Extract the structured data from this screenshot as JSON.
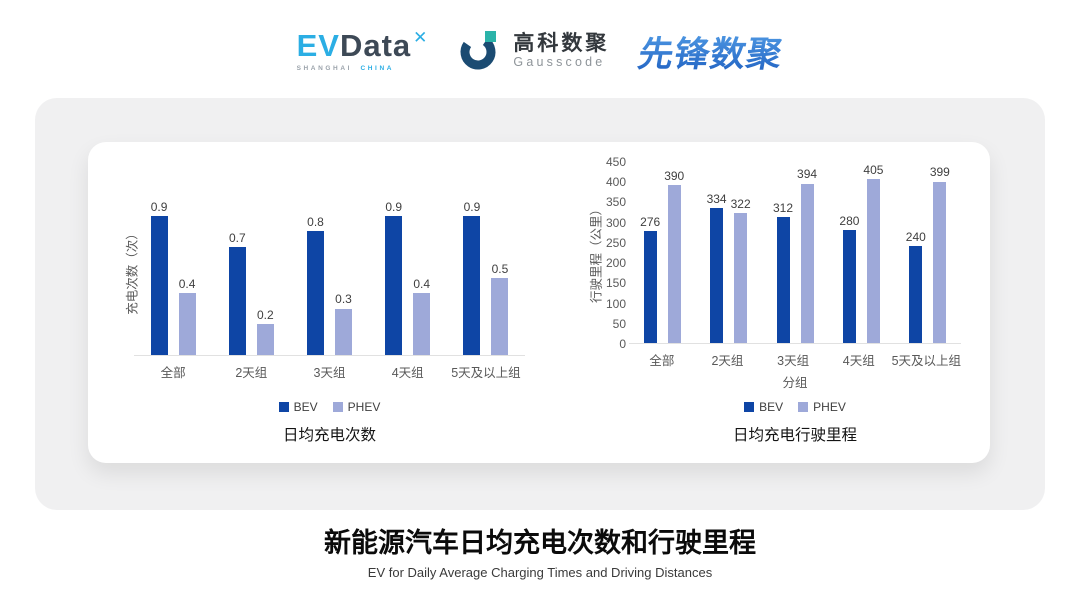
{
  "header": {
    "evdata": {
      "ev": "EV",
      "name": "Data",
      "mark": "✕",
      "sub_left": "SHANGHAI",
      "sub_right": "CHINA"
    },
    "gausscode": {
      "cn": "高科数聚",
      "en": "Gausscode"
    },
    "pioneer": "先锋数聚"
  },
  "legend": {
    "bev": "BEV",
    "phev": "PHEV"
  },
  "colors": {
    "bev": "#0E45A5",
    "phev": "#9EA9D9",
    "brand_light_blue": "#2BAEE4",
    "brand_dark_slate": "#3D4956",
    "pioneer_blue": "#2E74CE",
    "gauss_navy": "#1B4B72",
    "gauss_teal": "#2BB3A9"
  },
  "chart_data": [
    {
      "type": "bar",
      "title": "日均充电次数",
      "ylabel": "充电次数（次）",
      "xlabel": "",
      "categories": [
        "全部",
        "2天组",
        "3天组",
        "4天组",
        "5天及以上组"
      ],
      "series": [
        {
          "name": "BEV",
          "values": [
            0.9,
            0.7,
            0.8,
            0.9,
            0.9
          ]
        },
        {
          "name": "PHEV",
          "values": [
            0.4,
            0.2,
            0.3,
            0.4,
            0.5
          ]
        }
      ],
      "ylim": [
        0,
        1.0
      ],
      "yticks_visible": false,
      "grid": false,
      "legend_position": "bottom"
    },
    {
      "type": "bar",
      "title": "日均充电行驶里程",
      "ylabel": "行驶里程（公里）",
      "xlabel": "分组",
      "categories": [
        "全部",
        "2天组",
        "3天组",
        "4天组",
        "5天及以上组"
      ],
      "series": [
        {
          "name": "BEV",
          "values": [
            276,
            334,
            312,
            280,
            240
          ]
        },
        {
          "name": "PHEV",
          "values": [
            390,
            322,
            394,
            405,
            399
          ]
        }
      ],
      "ylim": [
        0,
        450
      ],
      "yticks": [
        0,
        50,
        100,
        150,
        200,
        250,
        300,
        350,
        400,
        450
      ],
      "yticks_visible": true,
      "grid": false,
      "legend_position": "bottom"
    }
  ],
  "footer": {
    "title": "新能源汽车日均充电次数和行驶里程",
    "subtitle": "EV for Daily Average Charging Times and Driving Distances"
  }
}
